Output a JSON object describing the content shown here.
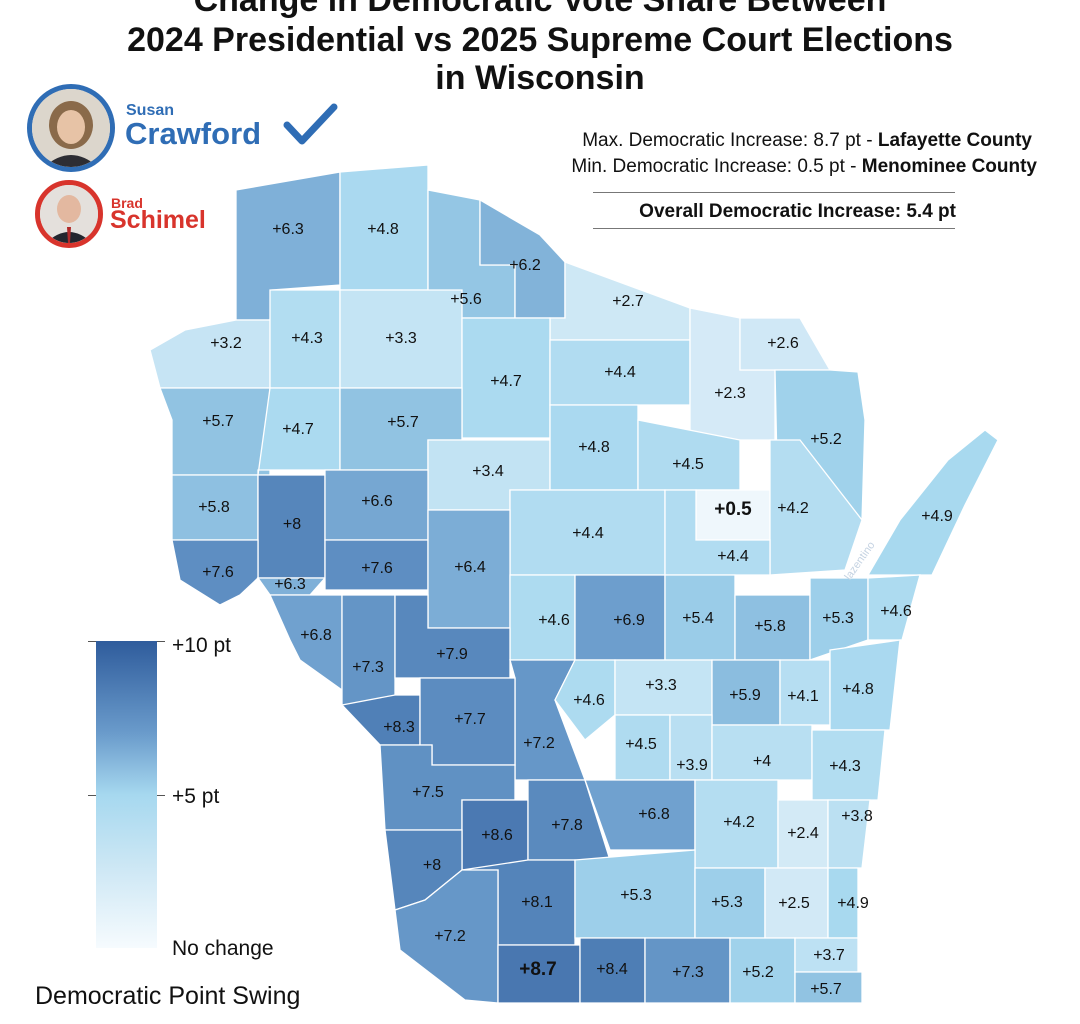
{
  "title": {
    "line1": "Change in Democratic Vote Share Between",
    "line2": "2024 Presidential vs 2025 Supreme Court Elections",
    "line3": "in Wisconsin"
  },
  "candidates": {
    "winner": {
      "first": "Susan",
      "last": "Crawford",
      "color": "#2f6db5",
      "check": "checkmark-icon"
    },
    "loser": {
      "first": "Brad",
      "last": "Schimel",
      "color": "#d8342c"
    }
  },
  "stats": {
    "max_prefix": "Max. Democratic Increase: 8.7 pt - ",
    "max_county": "Lafayette County",
    "min_prefix": "Min. Democratic Increase: 0.5 pt - ",
    "min_county": "Menominee County",
    "overall": "Overall Democratic Increase: 5.4 pt"
  },
  "legend": {
    "max_label": "+10 pt",
    "mid_label": "+5 pt",
    "min_label": "No change",
    "title": "Democratic Point Swing",
    "colors": [
      "#2f5c9c",
      "#6a9bcb",
      "#a6d8ef",
      "#f6fbfe"
    ]
  },
  "watermark": "lazentino",
  "counties": [
    {
      "id": "douglas",
      "label": "+6.3",
      "value": 6.3
    },
    {
      "id": "bayfield",
      "label": "+4.8",
      "value": 4.8
    },
    {
      "id": "ashland",
      "label": "+5.6",
      "value": 5.6
    },
    {
      "id": "iron",
      "label": "+6.2",
      "value": 6.2
    },
    {
      "id": "vilas",
      "label": "+2.7",
      "value": 2.7
    },
    {
      "id": "burnett",
      "label": "+3.2",
      "value": 3.2
    },
    {
      "id": "washburn",
      "label": "+4.3",
      "value": 4.3
    },
    {
      "id": "sawyer",
      "label": "+3.3",
      "value": 3.3
    },
    {
      "id": "price",
      "label": "+4.7",
      "value": 4.7
    },
    {
      "id": "oneida",
      "label": "+4.4",
      "value": 4.4
    },
    {
      "id": "forest",
      "label": "+2.3",
      "value": 2.3
    },
    {
      "id": "florence",
      "label": "+2.6",
      "value": 2.6
    },
    {
      "id": "marinette",
      "label": "+5.2",
      "value": 5.2
    },
    {
      "id": "polk",
      "label": "+5.7",
      "value": 5.7
    },
    {
      "id": "barron",
      "label": "+4.7",
      "value": 4.7
    },
    {
      "id": "rusk",
      "label": "+5.7",
      "value": 5.7
    },
    {
      "id": "taylor",
      "label": "+3.4",
      "value": 3.4
    },
    {
      "id": "lincoln",
      "label": "+4.8",
      "value": 4.8
    },
    {
      "id": "langlade",
      "label": "+4.5",
      "value": 4.5
    },
    {
      "id": "menominee",
      "label": "+0.5",
      "value": 0.5,
      "emphasis": true
    },
    {
      "id": "oconto",
      "label": "+4.2",
      "value": 4.2
    },
    {
      "id": "door",
      "label": "+4.9",
      "value": 4.9
    },
    {
      "id": "stcroix",
      "label": "+5.8",
      "value": 5.8
    },
    {
      "id": "dunn",
      "label": "+8",
      "value": 8
    },
    {
      "id": "chippewa",
      "label": "+6.6",
      "value": 6.6
    },
    {
      "id": "marathon",
      "label": "+4.4",
      "value": 4.4
    },
    {
      "id": "shawano",
      "label": "+4.4",
      "value": 4.4
    },
    {
      "id": "pierce",
      "label": "+7.6",
      "value": 7.6
    },
    {
      "id": "pepin",
      "label": "+6.3",
      "value": 6.3
    },
    {
      "id": "eauclaire",
      "label": "+7.6",
      "value": 7.6
    },
    {
      "id": "clark",
      "label": "+6.4",
      "value": 6.4
    },
    {
      "id": "wood",
      "label": "+4.6",
      "value": 4.6
    },
    {
      "id": "portage",
      "label": "+6.9",
      "value": 6.9
    },
    {
      "id": "waupaca",
      "label": "+5.4",
      "value": 5.4
    },
    {
      "id": "outagamie",
      "label": "+5.8",
      "value": 5.8
    },
    {
      "id": "brown",
      "label": "+5.3",
      "value": 5.3
    },
    {
      "id": "kewaunee",
      "label": "+4.6",
      "value": 4.6
    },
    {
      "id": "buffalo",
      "label": "+6.8",
      "value": 6.8
    },
    {
      "id": "trempealeau",
      "label": "+7.3",
      "value": 7.3
    },
    {
      "id": "jackson",
      "label": "+7.9",
      "value": 7.9
    },
    {
      "id": "juneau",
      "label": "+7.2",
      "value": 7.2
    },
    {
      "id": "adams",
      "label": "+4.6",
      "value": 4.6
    },
    {
      "id": "waushara",
      "label": "+3.3",
      "value": 3.3
    },
    {
      "id": "winnebago",
      "label": "+5.9",
      "value": 5.9
    },
    {
      "id": "calumet",
      "label": "+4.1",
      "value": 4.1
    },
    {
      "id": "manitowoc",
      "label": "+4.8",
      "value": 4.8
    },
    {
      "id": "lacrosse",
      "label": "+8.3",
      "value": 8.3
    },
    {
      "id": "monroe",
      "label": "+7.7",
      "value": 7.7
    },
    {
      "id": "marquette",
      "label": "+4.5",
      "value": 4.5
    },
    {
      "id": "greenlake",
      "label": "+3.9",
      "value": 3.9
    },
    {
      "id": "fonddulac",
      "label": "+4",
      "value": 4
    },
    {
      "id": "sheboygan",
      "label": "+4.3",
      "value": 4.3
    },
    {
      "id": "vernon",
      "label": "+7.5",
      "value": 7.5
    },
    {
      "id": "richland",
      "label": "+8.6",
      "value": 8.6
    },
    {
      "id": "sauk",
      "label": "+7.8",
      "value": 7.8
    },
    {
      "id": "columbia",
      "label": "+6.8",
      "value": 6.8
    },
    {
      "id": "dodge",
      "label": "+4.2",
      "value": 4.2
    },
    {
      "id": "washington",
      "label": "+2.4",
      "value": 2.4
    },
    {
      "id": "ozaukee",
      "label": "+3.8",
      "value": 3.8
    },
    {
      "id": "crawford",
      "label": "+8",
      "value": 8
    },
    {
      "id": "iowa",
      "label": "+8.1",
      "value": 8.1
    },
    {
      "id": "dane",
      "label": "+5.3",
      "value": 5.3
    },
    {
      "id": "jefferson",
      "label": "+5.3",
      "value": 5.3
    },
    {
      "id": "waukesha",
      "label": "+2.5",
      "value": 2.5
    },
    {
      "id": "milwaukee",
      "label": "+4.9",
      "value": 4.9
    },
    {
      "id": "grant",
      "label": "+7.2",
      "value": 7.2
    },
    {
      "id": "lafayette",
      "label": "+8.7",
      "value": 8.7,
      "emphasis": true
    },
    {
      "id": "green",
      "label": "+8.4",
      "value": 8.4
    },
    {
      "id": "rock",
      "label": "+7.3",
      "value": 7.3
    },
    {
      "id": "walworth",
      "label": "+5.2",
      "value": 5.2
    },
    {
      "id": "racine",
      "label": "+3.7",
      "value": 3.7
    },
    {
      "id": "kenosha",
      "label": "+5.7",
      "value": 5.7
    }
  ]
}
